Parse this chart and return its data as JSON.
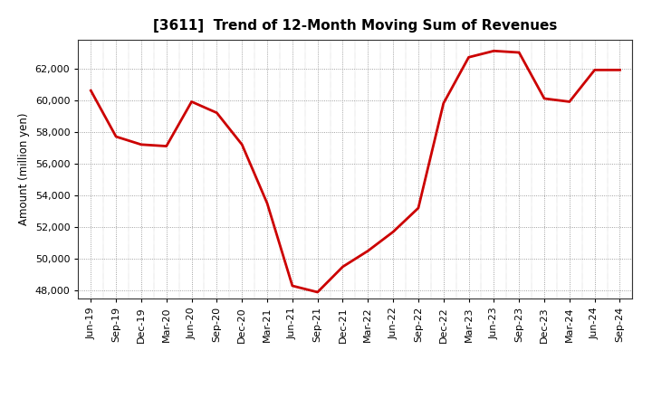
{
  "title": "[3611]  Trend of 12-Month Moving Sum of Revenues",
  "ylabel": "Amount (million yen)",
  "line_color": "#cc0000",
  "line_width": 2.0,
  "background_color": "#ffffff",
  "grid_color": "#888888",
  "x_labels": [
    "Jun-19",
    "Sep-19",
    "Dec-19",
    "Mar-20",
    "Jun-20",
    "Sep-20",
    "Dec-20",
    "Mar-21",
    "Jun-21",
    "Sep-21",
    "Dec-21",
    "Mar-22",
    "Jun-22",
    "Sep-22",
    "Dec-22",
    "Mar-23",
    "Jun-23",
    "Sep-23",
    "Dec-23",
    "Mar-24",
    "Jun-24",
    "Sep-24"
  ],
  "values": [
    60600,
    57700,
    57200,
    57100,
    59900,
    59200,
    57200,
    53500,
    48300,
    47900,
    49500,
    50500,
    51700,
    53200,
    59800,
    62700,
    63100,
    63000,
    60100,
    59900,
    61900,
    61900
  ],
  "ylim": [
    47500,
    63800
  ],
  "yticks": [
    48000,
    50000,
    52000,
    54000,
    56000,
    58000,
    60000,
    62000
  ],
  "title_fontsize": 11,
  "ylabel_fontsize": 8.5,
  "tick_fontsize": 8.0
}
